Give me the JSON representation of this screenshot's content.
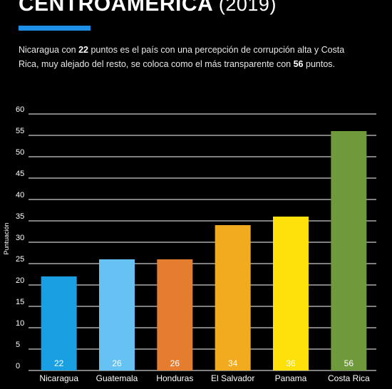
{
  "header": {
    "title": "CENTROAMERICA",
    "year": "(2019)"
  },
  "description": {
    "part1": "Nicaragua con ",
    "bold1": "22",
    "part2": " puntos es el país con una percepción de corrupción alta y Costa Rica, muy alejado del resto, se coloca como el más transparente con ",
    "bold2": "56",
    "part3": " puntos."
  },
  "colors": {
    "accent": "#1e90e6",
    "background": "#000000",
    "grid": "#ffffff"
  },
  "chart_data": {
    "type": "bar",
    "categories": [
      "Nicaragua",
      "Guatemala",
      "Honduras",
      "El Salvador",
      "Panama",
      "Costa Rica"
    ],
    "values": [
      22,
      26,
      26,
      34,
      36,
      56
    ],
    "colors": [
      "#1a9fe2",
      "#66c2f2",
      "#e57d30",
      "#f2ab1f",
      "#fce10a",
      "#6f9a3c"
    ],
    "ylabel": "Puntuación",
    "xlabel": "",
    "ylim": [
      0,
      60
    ],
    "yticks": [
      0,
      5,
      10,
      15,
      20,
      25,
      30,
      35,
      40,
      45,
      50,
      55,
      60
    ],
    "grid": true,
    "data_labels": true
  }
}
